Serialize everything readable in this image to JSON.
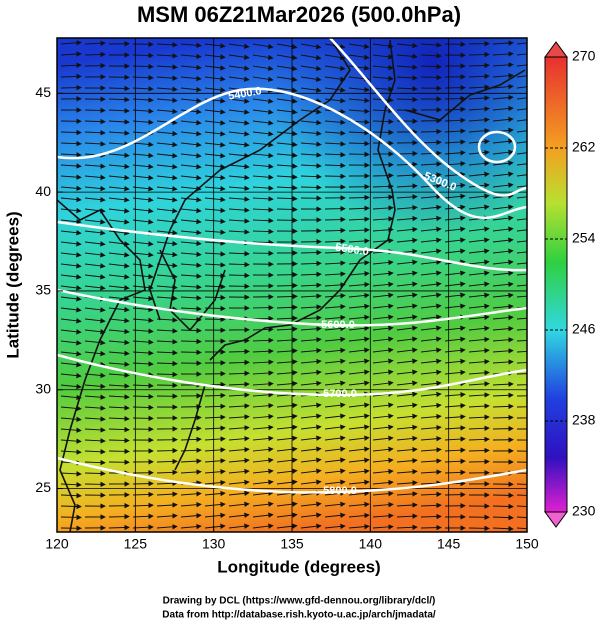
{
  "chart_data": {
    "type": "map",
    "title": "MSM 06Z21Mar2026 (500.0hPa)",
    "xlabel": "Longitude (degrees)",
    "ylabel": "Latitude  (degrees)",
    "xlim": [
      120,
      150
    ],
    "ylim": [
      22.8,
      47.8
    ],
    "xticks": [
      120,
      125,
      130,
      135,
      140,
      145,
      150
    ],
    "yticks": [
      25,
      30,
      35,
      40,
      45
    ],
    "grid": true,
    "colorbar": {
      "lim": [
        230,
        270
      ],
      "ticks": [
        230,
        238,
        246,
        254,
        262,
        270
      ]
    },
    "contour_labels": [
      "5300.0",
      "5400.0",
      "5500.0",
      "5600.0",
      "5700.0",
      "5800.0"
    ]
  },
  "credits": [
    "Drawing by DCL (https://www.gfd-dennou.org/library/dcl/)",
    "Data from http://database.rish.kyoto-u.ac.jp/arch/jmadata/"
  ]
}
